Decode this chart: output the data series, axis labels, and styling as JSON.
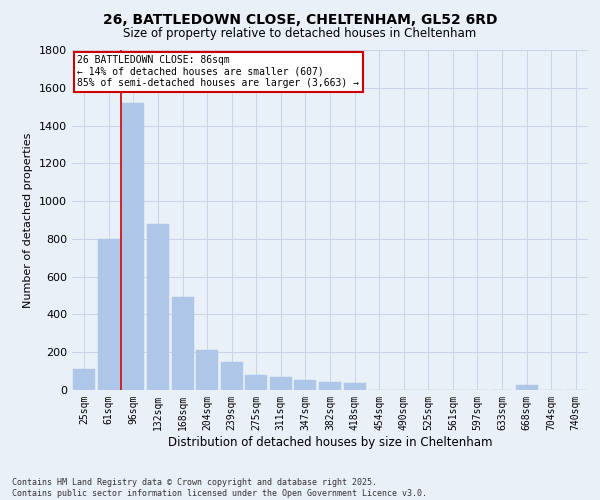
{
  "title_line1": "26, BATTLEDOWN CLOSE, CHELTENHAM, GL52 6RD",
  "title_line2": "Size of property relative to detached houses in Cheltenham",
  "xlabel": "Distribution of detached houses by size in Cheltenham",
  "ylabel": "Number of detached properties",
  "categories": [
    "25sqm",
    "61sqm",
    "96sqm",
    "132sqm",
    "168sqm",
    "204sqm",
    "239sqm",
    "275sqm",
    "311sqm",
    "347sqm",
    "382sqm",
    "418sqm",
    "454sqm",
    "490sqm",
    "525sqm",
    "561sqm",
    "597sqm",
    "633sqm",
    "668sqm",
    "704sqm",
    "740sqm"
  ],
  "values": [
    110,
    800,
    1520,
    880,
    490,
    210,
    150,
    80,
    70,
    55,
    45,
    35,
    0,
    0,
    0,
    0,
    0,
    0,
    25,
    0,
    0
  ],
  "bar_color": "#aec6e8",
  "bar_edge_color": "#aec6e8",
  "grid_color": "#c8d4e8",
  "bg_color": "#eaf0f8",
  "annotation_text_line1": "26 BATTLEDOWN CLOSE: 86sqm",
  "annotation_text_line2": "← 14% of detached houses are smaller (607)",
  "annotation_text_line3": "85% of semi-detached houses are larger (3,663) →",
  "annotation_box_color": "#ffffff",
  "annotation_border_color": "#cc0000",
  "vline_x": 1.5,
  "vline_color": "#cc0000",
  "ylim": [
    0,
    1800
  ],
  "yticks": [
    0,
    200,
    400,
    600,
    800,
    1000,
    1200,
    1400,
    1600,
    1800
  ],
  "footer_line1": "Contains HM Land Registry data © Crown copyright and database right 2025.",
  "footer_line2": "Contains public sector information licensed under the Open Government Licence v3.0."
}
